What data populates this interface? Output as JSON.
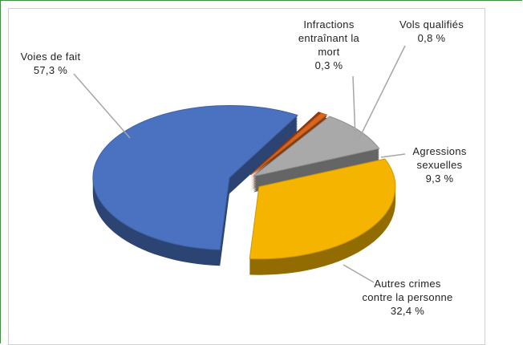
{
  "chart_data": {
    "type": "pie",
    "categories": [
      "Infractions entraînant la mort",
      "Vols qualifiés",
      "Agressions sexuelles",
      "Autres crimes contre la personne",
      "Voies de fait"
    ],
    "values": [
      0.3,
      0.8,
      9.3,
      32.4,
      57.3
    ],
    "value_labels": [
      "0,3 %",
      "0,8 %",
      "9,3 %",
      "32,4 %",
      "57,3 %"
    ],
    "colors": [
      "#9c3a10",
      "#d9661e",
      "#a9a9a9",
      "#f4b400",
      "#4a72c0"
    ]
  }
}
